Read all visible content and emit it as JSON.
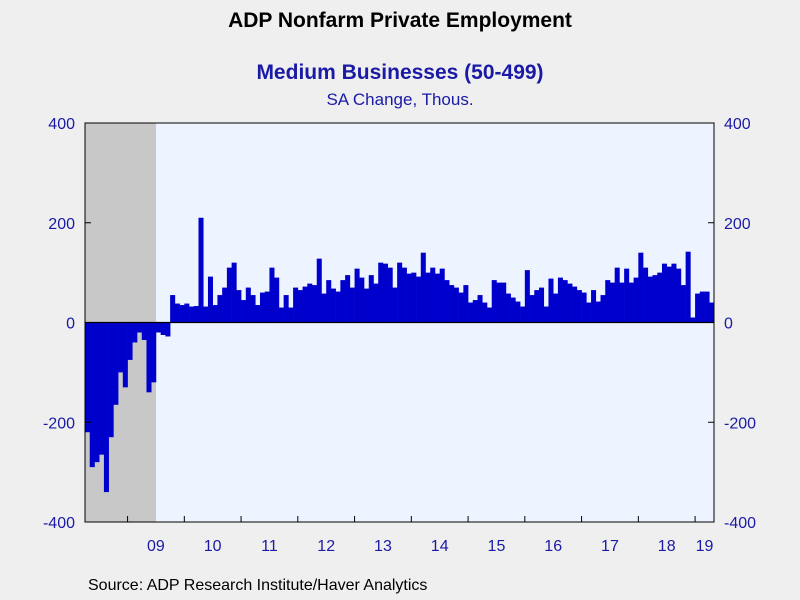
{
  "header": {
    "title": "ADP Nonfarm Private Employment",
    "subtitle": "Medium Businesses (50-499)",
    "units": "SA Change, Thous."
  },
  "footer": {
    "source": "Source:  ADP Research Institute/Haver Analytics"
  },
  "colors": {
    "bar": "#0000cc",
    "plot_background": "#eef4ff",
    "recession_shade": "#c8c8c8",
    "axis_text": "#1a1aa6",
    "page_background": "#efefef"
  },
  "chart_data": {
    "type": "bar",
    "title": "ADP Nonfarm Private Employment",
    "subtitle": "Medium Businesses (50-499)",
    "ylabel": "SA Change, Thous.",
    "ylim": [
      -400,
      400
    ],
    "yticks": [
      -400,
      -200,
      0,
      200,
      400
    ],
    "ytick_labels": [
      "-400",
      "-200",
      "0",
      "200",
      "400"
    ],
    "dual_y_axis": true,
    "grid": false,
    "start_period": "2008-04",
    "frequency": "monthly",
    "x_tick_labels": [
      "09",
      "10",
      "11",
      "12",
      "13",
      "14",
      "15",
      "16",
      "17",
      "18",
      "19"
    ],
    "recession_shading": {
      "start": "2008-04",
      "end": "2009-06"
    },
    "series": [
      {
        "values": [
          -220,
          -290,
          -280,
          -265,
          -340,
          -230,
          -165,
          -100,
          -130,
          -75,
          -40,
          -20,
          -35,
          -140,
          -120,
          -20,
          -25,
          -28,
          55,
          38,
          35,
          38,
          32,
          33,
          210,
          32,
          92,
          35,
          55,
          70,
          110,
          120,
          65,
          45,
          70,
          55,
          35,
          60,
          62,
          110,
          90,
          30,
          55,
          30,
          70,
          65,
          72,
          78,
          75,
          128,
          58,
          85,
          68,
          62,
          85,
          95,
          70,
          108,
          90,
          68,
          95,
          78,
          120,
          118,
          110,
          70,
          120,
          110,
          98,
          100,
          92,
          140,
          100,
          110,
          98,
          108,
          85,
          75,
          70,
          60,
          75,
          40,
          45,
          55,
          40,
          30,
          85,
          80,
          80,
          58,
          50,
          42,
          32,
          105,
          55,
          65,
          70,
          32,
          88,
          58,
          90,
          85,
          78,
          72,
          65,
          60,
          40,
          65,
          42,
          55,
          85,
          80,
          110,
          80,
          108,
          80,
          90,
          140,
          110,
          92,
          95,
          100,
          118,
          112,
          118,
          108,
          75,
          142,
          10,
          58,
          62,
          62,
          40
        ]
      }
    ]
  }
}
